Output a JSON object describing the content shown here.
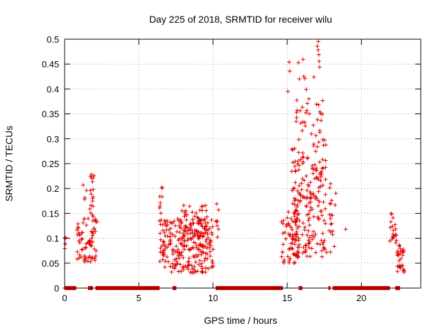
{
  "chart_data": {
    "type": "scatter",
    "title": "Day 225 of 2018, SRMTID for receiver wilu",
    "xlabel": "GPS time / hours",
    "ylabel": "SRMTID / TECUs",
    "xlim": [
      0,
      24
    ],
    "ylim": [
      0,
      0.5
    ],
    "x_ticks": [
      0,
      5,
      10,
      15,
      20
    ],
    "x_tick_labels": [
      "0",
      "5",
      "10",
      "15",
      "20"
    ],
    "y_ticks": [
      0,
      0.05,
      0.1,
      0.15,
      0.2,
      0.25,
      0.3,
      0.35,
      0.4,
      0.45,
      0.5
    ],
    "y_tick_labels": [
      "0",
      "0.05",
      "0.1",
      "0.15",
      "0.2",
      "0.25",
      "0.3",
      "0.35",
      "0.4",
      "0.45",
      "0.5"
    ],
    "grid": true,
    "marker": "+",
    "color": "#e00000",
    "series": [
      {
        "name": "SRMTID",
        "clusters": [
          {
            "x_range": [
              0.0,
              0.1
            ],
            "y_range": [
              0.07,
              0.11
            ],
            "count": 5
          },
          {
            "x_range": [
              0.8,
              2.2
            ],
            "y_range": [
              0.05,
              0.14
            ],
            "count": 70
          },
          {
            "x_range": [
              1.7,
              2.0
            ],
            "y_range": [
              0.14,
              0.235
            ],
            "count": 18
          },
          {
            "x_range": [
              1.2,
              1.6
            ],
            "y_range": [
              0.15,
              0.21
            ],
            "count": 4
          },
          {
            "x_range": [
              6.4,
              7.2
            ],
            "y_range": [
              0.04,
              0.14
            ],
            "count": 50
          },
          {
            "x_range": [
              6.4,
              6.6
            ],
            "y_range": [
              0.15,
              0.205
            ],
            "count": 8
          },
          {
            "x_range": [
              7.2,
              10.0
            ],
            "y_range": [
              0.03,
              0.14
            ],
            "count": 230
          },
          {
            "x_range": [
              7.6,
              9.6
            ],
            "y_range": [
              0.13,
              0.17
            ],
            "count": 25
          },
          {
            "x_range": [
              10.2,
              10.4
            ],
            "y_range": [
              0.1,
              0.17
            ],
            "count": 8
          },
          {
            "x_range": [
              14.6,
              15.9
            ],
            "y_range": [
              0.05,
              0.16
            ],
            "count": 80
          },
          {
            "x_range": [
              15.3,
              17.6
            ],
            "y_range": [
              0.15,
              0.3
            ],
            "count": 120
          },
          {
            "x_range": [
              15.4,
              17.4
            ],
            "y_range": [
              0.3,
              0.38
            ],
            "count": 30
          },
          {
            "x_range": [
              15.0,
              16.8
            ],
            "y_range": [
              0.39,
              0.46
            ],
            "count": 10
          },
          {
            "x_range": [
              17.0,
              17.2
            ],
            "y_range": [
              0.42,
              0.5
            ],
            "count": 6
          },
          {
            "x_range": [
              15.6,
              18.2
            ],
            "y_range": [
              0.06,
              0.15
            ],
            "count": 70
          },
          {
            "x_range": [
              17.8,
              18.3
            ],
            "y_range": [
              0.14,
              0.215
            ],
            "count": 10
          },
          {
            "x_range": [
              18.9,
              19.0
            ],
            "y_range": [
              0.115,
              0.12
            ],
            "count": 1
          },
          {
            "x_range": [
              21.9,
              22.4
            ],
            "y_range": [
              0.08,
              0.15
            ],
            "count": 20
          },
          {
            "x_range": [
              22.4,
              22.9
            ],
            "y_range": [
              0.03,
              0.09
            ],
            "count": 30
          }
        ],
        "zero_segments": [
          [
            0.0,
            0.8
          ],
          [
            1.6,
            1.9
          ],
          [
            2.1,
            6.4
          ],
          [
            7.3,
            7.5
          ],
          [
            10.2,
            14.7
          ],
          [
            15.8,
            16.0
          ],
          [
            17.8,
            17.9
          ],
          [
            18.1,
            21.9
          ],
          [
            22.3,
            22.6
          ]
        ]
      }
    ]
  }
}
